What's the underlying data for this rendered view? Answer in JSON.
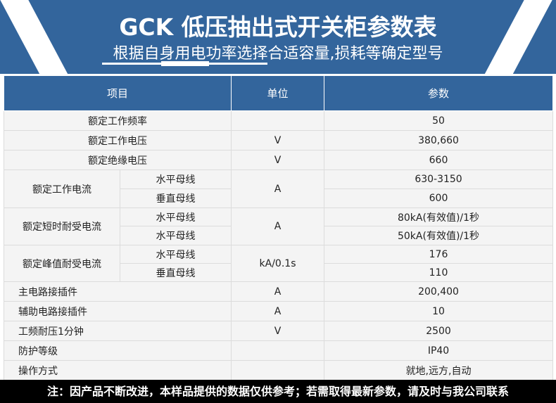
{
  "header": {
    "title": "GCK 低压抽出式开关柜参数表",
    "subtitle": "根据自身用电功率选择合适容量,损耗等确定型号"
  },
  "colors": {
    "brand": "#33659c"
  },
  "table": {
    "columns": [
      "项目",
      "单位",
      "参数"
    ],
    "rows": [
      {
        "item": "额定工作频率",
        "unit": "",
        "value": "50"
      },
      {
        "item": "额定工作电压",
        "unit": "V",
        "value": "380,660"
      },
      {
        "item": "额定绝缘电压",
        "unit": "V",
        "value": "660"
      },
      {
        "item": "额定工作电流",
        "unit": "A",
        "sub": [
          "水平母线",
          "垂直母线"
        ],
        "values": [
          "630-3150",
          "600"
        ]
      },
      {
        "item": "额定短时耐受电流",
        "unit": "A",
        "sub": [
          "水平母线",
          "水平母线"
        ],
        "values": [
          "80kA(有效值)/1秒",
          "50kA(有效值)/1秒"
        ]
      },
      {
        "item": "额定峰值耐受电流",
        "unit": "kA/0.1s",
        "sub": [
          "水平母线",
          "垂直母线"
        ],
        "values": [
          "176",
          "110"
        ]
      },
      {
        "item": "主电路接插件",
        "unit": "A",
        "value": "200,400"
      },
      {
        "item": "辅助电路接插件",
        "unit": "A",
        "value": "10"
      },
      {
        "item": "工频耐压1分钟",
        "unit": "V",
        "value": "2500"
      },
      {
        "item": "防护等级",
        "unit": "",
        "value": "IP40"
      },
      {
        "item": "操作方式",
        "unit": "",
        "value": "就地,远方,自动"
      }
    ]
  },
  "footer": {
    "note": "注：因产品不断改进，本样品提供的数据仅供参考；若需取得最新参数，请及时与我公司联系"
  }
}
